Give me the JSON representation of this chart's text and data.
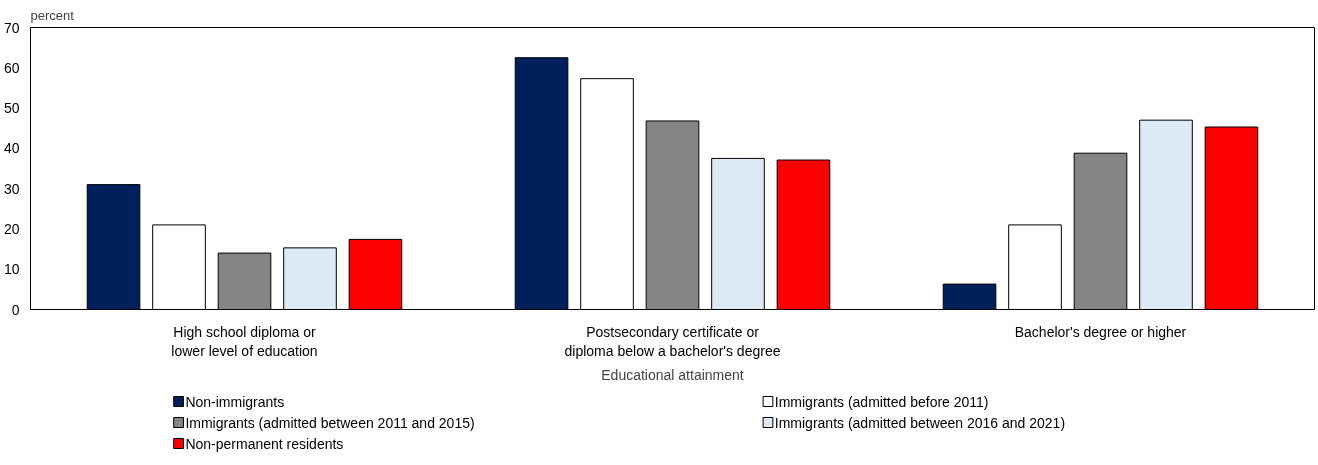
{
  "chart_data": {
    "type": "bar",
    "ylabel": "percent",
    "xlabel": "Educational attainment",
    "categories": [
      "High school diploma or\nlower level of education",
      "Postsecondary certificate or\ndiploma below a bachelor's degree",
      "Bachelor's degree or higher"
    ],
    "series": [
      {
        "name": "Non-immigrants",
        "color": "#00205b",
        "values": [
          31,
          62.5,
          6.3
        ]
      },
      {
        "name": "Immigrants (admitted before 2011)",
        "color": "#ffffff",
        "values": [
          21,
          57.3,
          21
        ]
      },
      {
        "name": "Immigrants (admitted between 2011 and 2015)",
        "color": "#858585",
        "values": [
          14,
          46.8,
          38.8
        ]
      },
      {
        "name": "Immigrants (admitted between 2016 and 2021)",
        "color": "#dde9f5",
        "values": [
          15.3,
          37.5,
          47
        ]
      },
      {
        "name": "Non-permanent residents",
        "color": "#ff0000",
        "values": [
          17.4,
          37.1,
          45.3
        ]
      }
    ],
    "ylim": [
      0,
      70
    ],
    "yticks": [
      0,
      10,
      20,
      30,
      40,
      50,
      60,
      70
    ],
    "grid": false,
    "legend": "bottom"
  }
}
